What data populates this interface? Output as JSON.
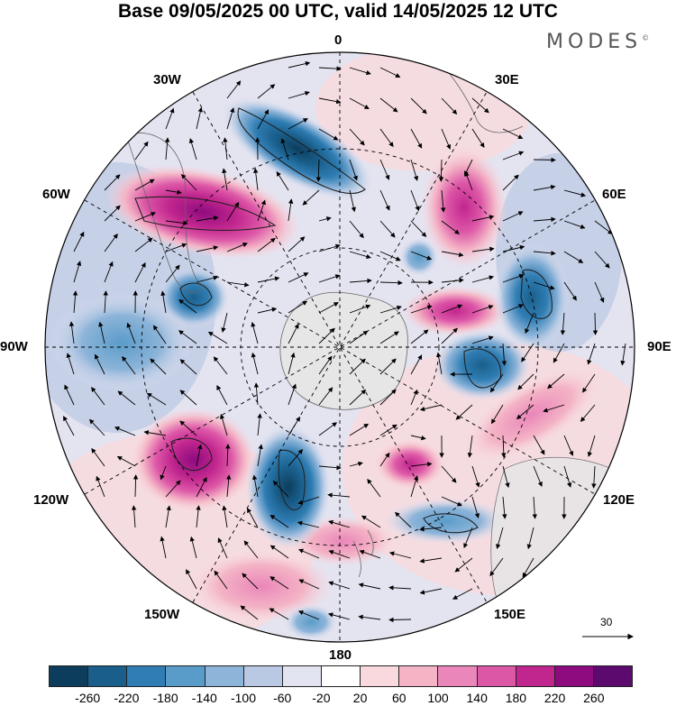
{
  "title": "Base 09/05/2025 00 UTC, valid 14/05/2025 12 UTC",
  "brand": {
    "name": "MODES",
    "mark": "©"
  },
  "map": {
    "projection": "south-polar-stereographic",
    "longitude_labels": {
      "top": "0",
      "bottom": "180",
      "left": "90W",
      "right": "90E",
      "upper_left_1": "30W",
      "upper_left_2": "60W",
      "upper_right_1": "30E",
      "upper_right_2": "60E",
      "lower_left_1": "120W",
      "lower_left_2": "150W",
      "lower_right_1": "120E",
      "lower_right_2": "150E"
    },
    "features": [
      "Antarctica",
      "South America tip",
      "Australia",
      "New Zealand",
      "Africa tip"
    ],
    "anomaly_centers": [
      {
        "sign": "negative",
        "location": "south Atlantic near 10W",
        "level": "-220"
      },
      {
        "sign": "positive",
        "location": "south of South America near 60W",
        "level": "220"
      },
      {
        "sign": "negative",
        "location": "near 90W",
        "level": "-180"
      },
      {
        "sign": "positive",
        "location": "south Indian Ocean near 40E",
        "level": "180"
      },
      {
        "sign": "negative",
        "location": "near 70E",
        "level": "-180"
      },
      {
        "sign": "positive",
        "location": "near 120W",
        "level": "220"
      },
      {
        "sign": "negative",
        "location": "Pacific near 150W",
        "level": "-220"
      },
      {
        "sign": "positive",
        "location": "near 100E",
        "level": "140"
      },
      {
        "sign": "negative",
        "location": "south of Australia near 130E",
        "level": "-140"
      }
    ]
  },
  "colorbar": {
    "colors": [
      "#0d3d5c",
      "#1a5f8c",
      "#2f7db3",
      "#5a9cc9",
      "#8db4d9",
      "#b9c8e3",
      "#e2e4f1",
      "#ffffff",
      "#f9d9dd",
      "#f4b4c6",
      "#ea86b9",
      "#dd57a7",
      "#c1268e",
      "#8e0b7f",
      "#5d0a6e"
    ],
    "ticks": [
      "-260",
      "-220",
      "-180",
      "-140",
      "-100",
      "-60",
      "-20",
      "20",
      "60",
      "100",
      "140",
      "180",
      "220",
      "260"
    ]
  },
  "vector_reference": {
    "value": "30"
  }
}
